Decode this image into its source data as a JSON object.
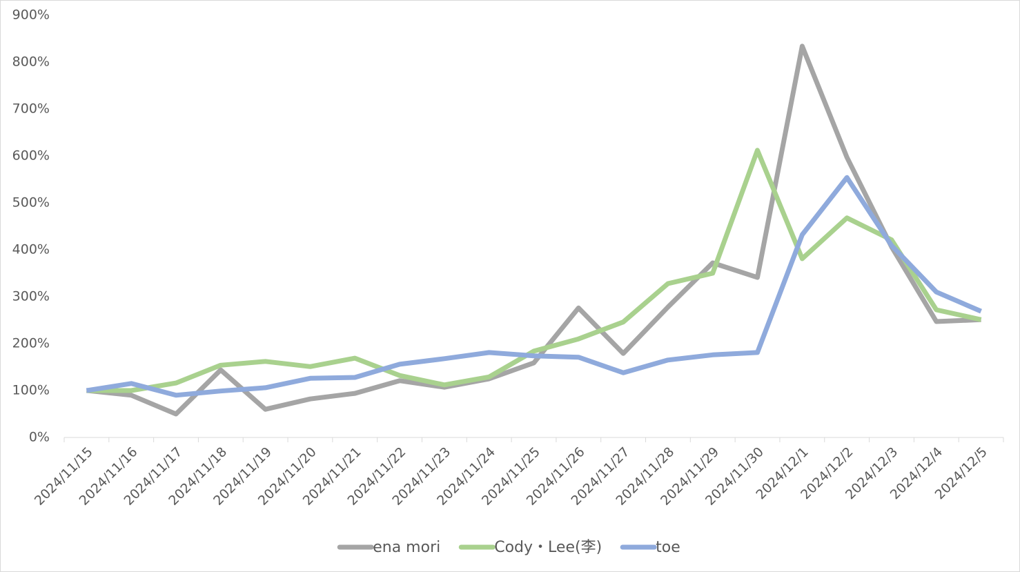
{
  "chart_data": {
    "type": "line",
    "categories": [
      "2024/11/15",
      "2024/11/16",
      "2024/11/17",
      "2024/11/18",
      "2024/11/19",
      "2024/11/20",
      "2024/11/21",
      "2024/11/22",
      "2024/11/23",
      "2024/11/24",
      "2024/11/25",
      "2024/11/26",
      "2024/11/27",
      "2024/11/28",
      "2024/11/29",
      "2024/11/30",
      "2024/12/1",
      "2024/12/2",
      "2024/12/3",
      "2024/12/4",
      "2024/12/5"
    ],
    "series": [
      {
        "name": "ena mori",
        "color": "#a5a5a5",
        "values": [
          100,
          90,
          50,
          144,
          60,
          82,
          94,
          121,
          107,
          125,
          159,
          276,
          179,
          278,
          372,
          341,
          834,
          597,
          406,
          247,
          251
        ]
      },
      {
        "name": "Cody・Lee(李)",
        "color": "#a9d18e",
        "values": [
          100,
          100,
          116,
          154,
          162,
          151,
          169,
          132,
          112,
          129,
          184,
          210,
          246,
          328,
          350,
          612,
          381,
          468,
          421,
          272,
          251
        ]
      },
      {
        "name": "toe",
        "color": "#8faadc",
        "values": [
          100,
          115,
          90,
          99,
          106,
          126,
          128,
          156,
          168,
          181,
          174,
          171,
          138,
          165,
          176,
          181,
          432,
          554,
          409,
          310,
          269
        ]
      }
    ],
    "ylim": [
      0,
      900
    ],
    "yticks": [
      {
        "value": 0,
        "label": "0%"
      },
      {
        "value": 100,
        "label": "100%"
      },
      {
        "value": 200,
        "label": "200%"
      },
      {
        "value": 300,
        "label": "300%"
      },
      {
        "value": 400,
        "label": "400%"
      },
      {
        "value": 500,
        "label": "500%"
      },
      {
        "value": 600,
        "label": "600%"
      },
      {
        "value": 700,
        "label": "700%"
      },
      {
        "value": 800,
        "label": "800%"
      },
      {
        "value": 900,
        "label": "900%"
      }
    ],
    "grid": false,
    "legend": "bottom"
  }
}
